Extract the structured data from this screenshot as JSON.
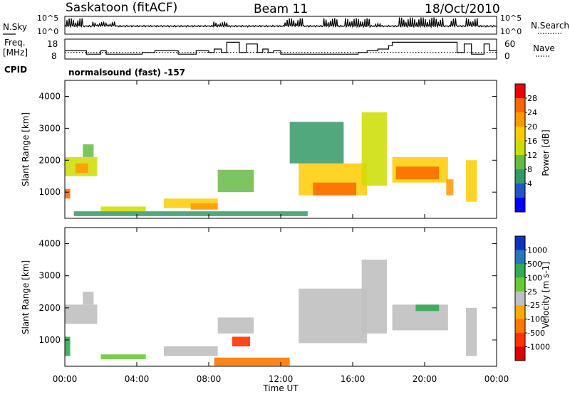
{
  "header": {
    "station": "Saskatoon (fitACF)",
    "beam": "Beam 11",
    "date": "18/Oct/2010"
  },
  "noise_panel": {
    "left_label": "N.Sky",
    "right_label": "N.Search",
    "left_ticks": [
      "10^5",
      "10^0"
    ],
    "right_ticks": [
      "10^5",
      "10^0"
    ]
  },
  "freq_panel": {
    "left_label_1": "Freq.",
    "left_label_2": "[MHz]",
    "right_label": "Nave",
    "left_ticks": [
      "18",
      "8"
    ],
    "right_ticks": [
      "60",
      "0"
    ]
  },
  "cpid": {
    "label": "CPID",
    "value": "normalsound (fast) -157"
  },
  "power_panel": {
    "ylabel": "Slant Range [km]",
    "cbar_label": "Power [dB]",
    "cbar_ticks": [
      "28",
      "24",
      "20",
      "16",
      "12",
      "8",
      "4"
    ],
    "cbar_colors": [
      "#ee0000",
      "#ff6600",
      "#ff9900",
      "#ffcc00",
      "#ccdd00",
      "#66bb44",
      "#339966",
      "#2255cc",
      "#0000ff"
    ]
  },
  "velocity_panel": {
    "ylabel": "Slant Range [km]",
    "cbar_label": "Velocity [m s-1]",
    "cbar_ticks": [
      "1000",
      "500",
      "100",
      "25",
      "-25",
      "-100",
      "-500",
      "-1000"
    ],
    "cbar_colors": [
      "#1133bb",
      "#2277bb",
      "#33aa55",
      "#66cc33",
      "#c0c0c0",
      "#ffaa00",
      "#ff7700",
      "#ff3300",
      "#dd0000"
    ]
  },
  "xaxis": {
    "label": "Time UT",
    "ticks": [
      "00:00",
      "04:00",
      "08:00",
      "12:00",
      "16:00",
      "20:00",
      "00:00"
    ]
  },
  "chart_data": {
    "type": "heatmap",
    "x_range_hours": [
      0,
      24
    ],
    "y_range_km": [
      180,
      4500
    ],
    "yticks": [
      1000,
      2000,
      3000,
      4000
    ],
    "power_regions": [
      {
        "t0": 0.0,
        "t1": 0.3,
        "r0": 800,
        "r1": 1100,
        "power_db": 28
      },
      {
        "t0": 0.0,
        "t1": 1.8,
        "r0": 1500,
        "r1": 2100,
        "power_db": 16
      },
      {
        "t0": 0.6,
        "t1": 1.3,
        "r0": 1600,
        "r1": 1900,
        "power_db": 24
      },
      {
        "t0": 1.0,
        "t1": 1.6,
        "r0": 2100,
        "r1": 2500,
        "power_db": 12
      },
      {
        "t0": 2.0,
        "t1": 4.5,
        "r0": 400,
        "r1": 550,
        "power_db": 16
      },
      {
        "t0": 5.5,
        "t1": 8.5,
        "r0": 500,
        "r1": 800,
        "power_db": 20
      },
      {
        "t0": 7.0,
        "t1": 8.5,
        "r0": 450,
        "r1": 650,
        "power_db": 24
      },
      {
        "t0": 8.5,
        "t1": 10.5,
        "r0": 1000,
        "r1": 1700,
        "power_db": 12
      },
      {
        "t0": 0.5,
        "t1": 13.5,
        "r0": 250,
        "r1": 400,
        "power_db": 8
      },
      {
        "t0": 13.0,
        "t1": 16.8,
        "r0": 900,
        "r1": 1900,
        "power_db": 20
      },
      {
        "t0": 13.8,
        "t1": 16.2,
        "r0": 900,
        "r1": 1300,
        "power_db": 28
      },
      {
        "t0": 12.5,
        "t1": 15.5,
        "r0": 1900,
        "r1": 3200,
        "power_db": 8
      },
      {
        "t0": 16.5,
        "t1": 17.9,
        "r0": 1200,
        "r1": 3500,
        "power_db": 16
      },
      {
        "t0": 18.2,
        "t1": 21.3,
        "r0": 1300,
        "r1": 2100,
        "power_db": 20
      },
      {
        "t0": 18.4,
        "t1": 20.8,
        "r0": 1400,
        "r1": 1800,
        "power_db": 28
      },
      {
        "t0": 21.2,
        "t1": 21.6,
        "r0": 900,
        "r1": 1400,
        "power_db": 24
      },
      {
        "t0": 22.3,
        "t1": 22.9,
        "r0": 700,
        "r1": 2000,
        "power_db": 20
      }
    ],
    "velocity_regions": [
      {
        "t0": 0.0,
        "t1": 1.8,
        "r0": 1500,
        "r1": 2100,
        "velocity": 0
      },
      {
        "t0": 0.0,
        "t1": 0.3,
        "r0": 500,
        "r1": 1100,
        "velocity": 300
      },
      {
        "t0": 1.0,
        "t1": 1.6,
        "r0": 2100,
        "r1": 2500,
        "velocity": 0
      },
      {
        "t0": 2.0,
        "t1": 4.5,
        "r0": 400,
        "r1": 550,
        "velocity": 60
      },
      {
        "t0": 5.5,
        "t1": 8.5,
        "r0": 500,
        "r1": 800,
        "velocity": 0
      },
      {
        "t0": 8.3,
        "t1": 12.5,
        "r0": 200,
        "r1": 450,
        "velocity": -100
      },
      {
        "t0": 9.3,
        "t1": 10.3,
        "r0": 800,
        "r1": 1100,
        "velocity": -500
      },
      {
        "t0": 8.5,
        "t1": 10.5,
        "r0": 1200,
        "r1": 1700,
        "velocity": 0
      },
      {
        "t0": 13.0,
        "t1": 16.8,
        "r0": 900,
        "r1": 2600,
        "velocity": 0
      },
      {
        "t0": 16.5,
        "t1": 17.9,
        "r0": 1200,
        "r1": 3500,
        "velocity": 0
      },
      {
        "t0": 18.2,
        "t1": 21.3,
        "r0": 1300,
        "r1": 2100,
        "velocity": 0
      },
      {
        "t0": 19.5,
        "t1": 20.8,
        "r0": 1900,
        "r1": 2100,
        "velocity": 120
      },
      {
        "t0": 22.3,
        "t1": 22.9,
        "r0": 500,
        "r1": 2000,
        "velocity": 0
      }
    ],
    "freq_steps": [
      {
        "t0": 0.0,
        "t1": 1.2,
        "mhz": 12
      },
      {
        "t0": 1.2,
        "t1": 2.0,
        "mhz": 10
      },
      {
        "t0": 2.0,
        "t1": 2.3,
        "mhz": 12
      },
      {
        "t0": 2.3,
        "t1": 4.3,
        "mhz": 10
      },
      {
        "t0": 4.3,
        "t1": 5.0,
        "mhz": 11
      },
      {
        "t0": 5.0,
        "t1": 6.3,
        "mhz": 12
      },
      {
        "t0": 6.3,
        "t1": 7.3,
        "mhz": 10
      },
      {
        "t0": 7.3,
        "t1": 8.0,
        "mhz": 12
      },
      {
        "t0": 8.0,
        "t1": 8.3,
        "mhz": 11
      },
      {
        "t0": 8.3,
        "t1": 8.7,
        "mhz": 13
      },
      {
        "t0": 8.7,
        "t1": 9.0,
        "mhz": 11
      },
      {
        "t0": 9.0,
        "t1": 9.7,
        "mhz": 17
      },
      {
        "t0": 9.7,
        "t1": 10.1,
        "mhz": 11
      },
      {
        "t0": 10.1,
        "t1": 10.7,
        "mhz": 16
      },
      {
        "t0": 10.7,
        "t1": 11.0,
        "mhz": 11
      },
      {
        "t0": 11.0,
        "t1": 11.3,
        "mhz": 13
      },
      {
        "t0": 11.3,
        "t1": 11.6,
        "mhz": 11
      },
      {
        "t0": 11.6,
        "t1": 12.0,
        "mhz": 12
      },
      {
        "t0": 12.0,
        "t1": 13.5,
        "mhz": 10
      },
      {
        "t0": 13.5,
        "t1": 16.3,
        "mhz": 10
      },
      {
        "t0": 16.3,
        "t1": 16.8,
        "mhz": 11
      },
      {
        "t0": 16.8,
        "t1": 17.4,
        "mhz": 12
      },
      {
        "t0": 17.4,
        "t1": 18.0,
        "mhz": 13
      },
      {
        "t0": 18.0,
        "t1": 18.2,
        "mhz": 15
      },
      {
        "t0": 18.2,
        "t1": 21.8,
        "mhz": 17
      },
      {
        "t0": 21.8,
        "t1": 22.2,
        "mhz": 11
      },
      {
        "t0": 22.2,
        "t1": 22.6,
        "mhz": 16
      },
      {
        "t0": 22.6,
        "t1": 23.3,
        "mhz": 10
      },
      {
        "t0": 23.3,
        "t1": 23.6,
        "mhz": 16
      },
      {
        "t0": 23.6,
        "t1": 24.0,
        "mhz": 12
      }
    ],
    "nave_level": 20,
    "noise_baseline": 0.45,
    "noise_bursts": [
      {
        "t0": 0.1,
        "t1": 1.0,
        "level": 0.9
      },
      {
        "t0": 1.5,
        "t1": 2.8,
        "level": 0.7
      },
      {
        "t0": 8.2,
        "t1": 9.0,
        "level": 0.7
      },
      {
        "t0": 12.2,
        "t1": 13.3,
        "level": 0.9
      },
      {
        "t0": 14.3,
        "t1": 15.2,
        "level": 0.9
      },
      {
        "t0": 15.6,
        "t1": 17.0,
        "level": 0.9
      },
      {
        "t0": 17.0,
        "t1": 17.8,
        "level": 0.6
      },
      {
        "t0": 18.6,
        "t1": 21.0,
        "level": 0.95
      },
      {
        "t0": 21.4,
        "t1": 21.8,
        "level": 0.9
      },
      {
        "t0": 22.3,
        "t1": 23.0,
        "level": 0.9
      }
    ]
  }
}
